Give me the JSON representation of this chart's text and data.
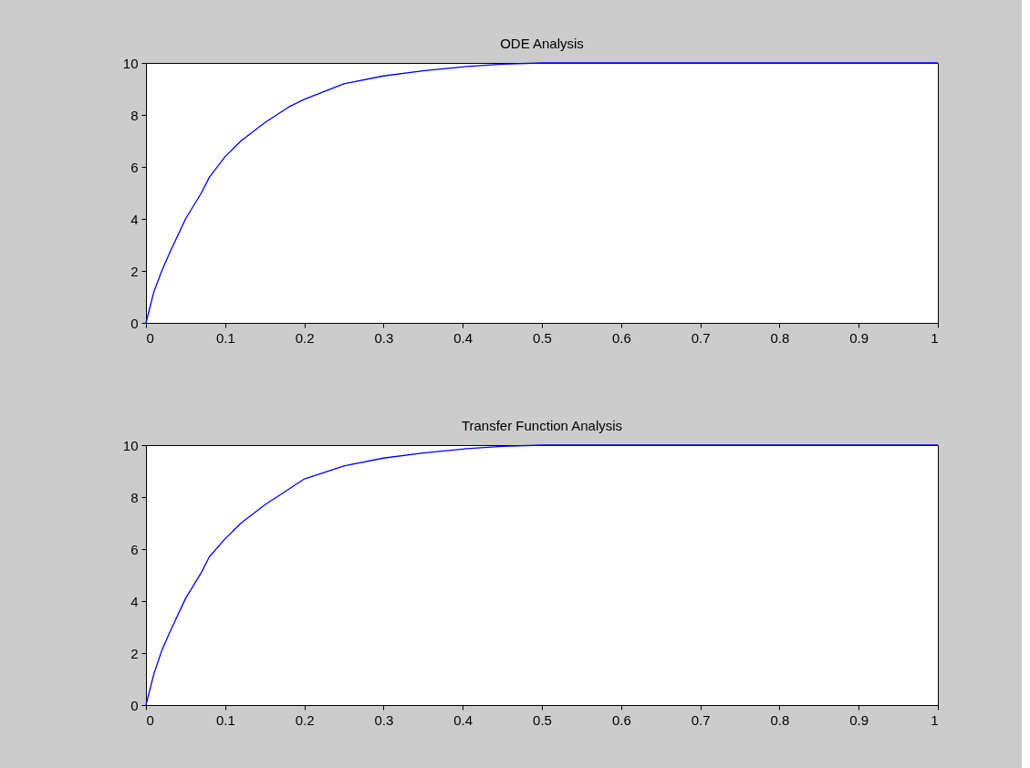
{
  "chart_data": [
    {
      "type": "line",
      "title": "ODE Analysis",
      "x": [
        0,
        0.01,
        0.02,
        0.03,
        0.05,
        0.07,
        0.08,
        0.1,
        0.12,
        0.15,
        0.18,
        0.2,
        0.25,
        0.3,
        0.35,
        0.4,
        0.45,
        0.5,
        0.6,
        0.8,
        1
      ],
      "series": [
        {
          "color": "#0000ff",
          "values": [
            0,
            1.2,
            2.0,
            2.7,
            4.0,
            5.0,
            5.6,
            6.4,
            7.0,
            7.7,
            8.3,
            8.6,
            9.2,
            9.5,
            9.7,
            9.85,
            9.95,
            10,
            10,
            10,
            10
          ]
        }
      ],
      "xlim": [
        0,
        1
      ],
      "xticks": [
        0,
        0.1,
        0.2,
        0.3,
        0.4,
        0.5,
        0.6,
        0.7,
        0.8,
        0.9,
        1
      ],
      "ylim": [
        0,
        10
      ],
      "yticks": [
        0,
        2,
        4,
        6,
        8,
        10
      ],
      "grid": false,
      "legend": false
    },
    {
      "type": "line",
      "title": "Transfer Function Analysis",
      "x": [
        0,
        0.01,
        0.02,
        0.03,
        0.05,
        0.07,
        0.08,
        0.1,
        0.12,
        0.15,
        0.18,
        0.2,
        0.25,
        0.3,
        0.35,
        0.4,
        0.45,
        0.5,
        0.6,
        0.8,
        1
      ],
      "series": [
        {
          "color": "#0000ff",
          "values": [
            0,
            1.2,
            2.1,
            2.8,
            4.1,
            5.1,
            5.7,
            6.4,
            7.0,
            7.7,
            8.3,
            8.7,
            9.2,
            9.5,
            9.7,
            9.85,
            9.95,
            10,
            10,
            10,
            10
          ]
        }
      ],
      "xlim": [
        0,
        1
      ],
      "xticks": [
        0,
        0.1,
        0.2,
        0.3,
        0.4,
        0.5,
        0.6,
        0.7,
        0.8,
        0.9,
        1
      ],
      "ylim": [
        0,
        10
      ],
      "yticks": [
        0,
        2,
        4,
        6,
        8,
        10
      ],
      "grid": false,
      "legend": false
    }
  ]
}
